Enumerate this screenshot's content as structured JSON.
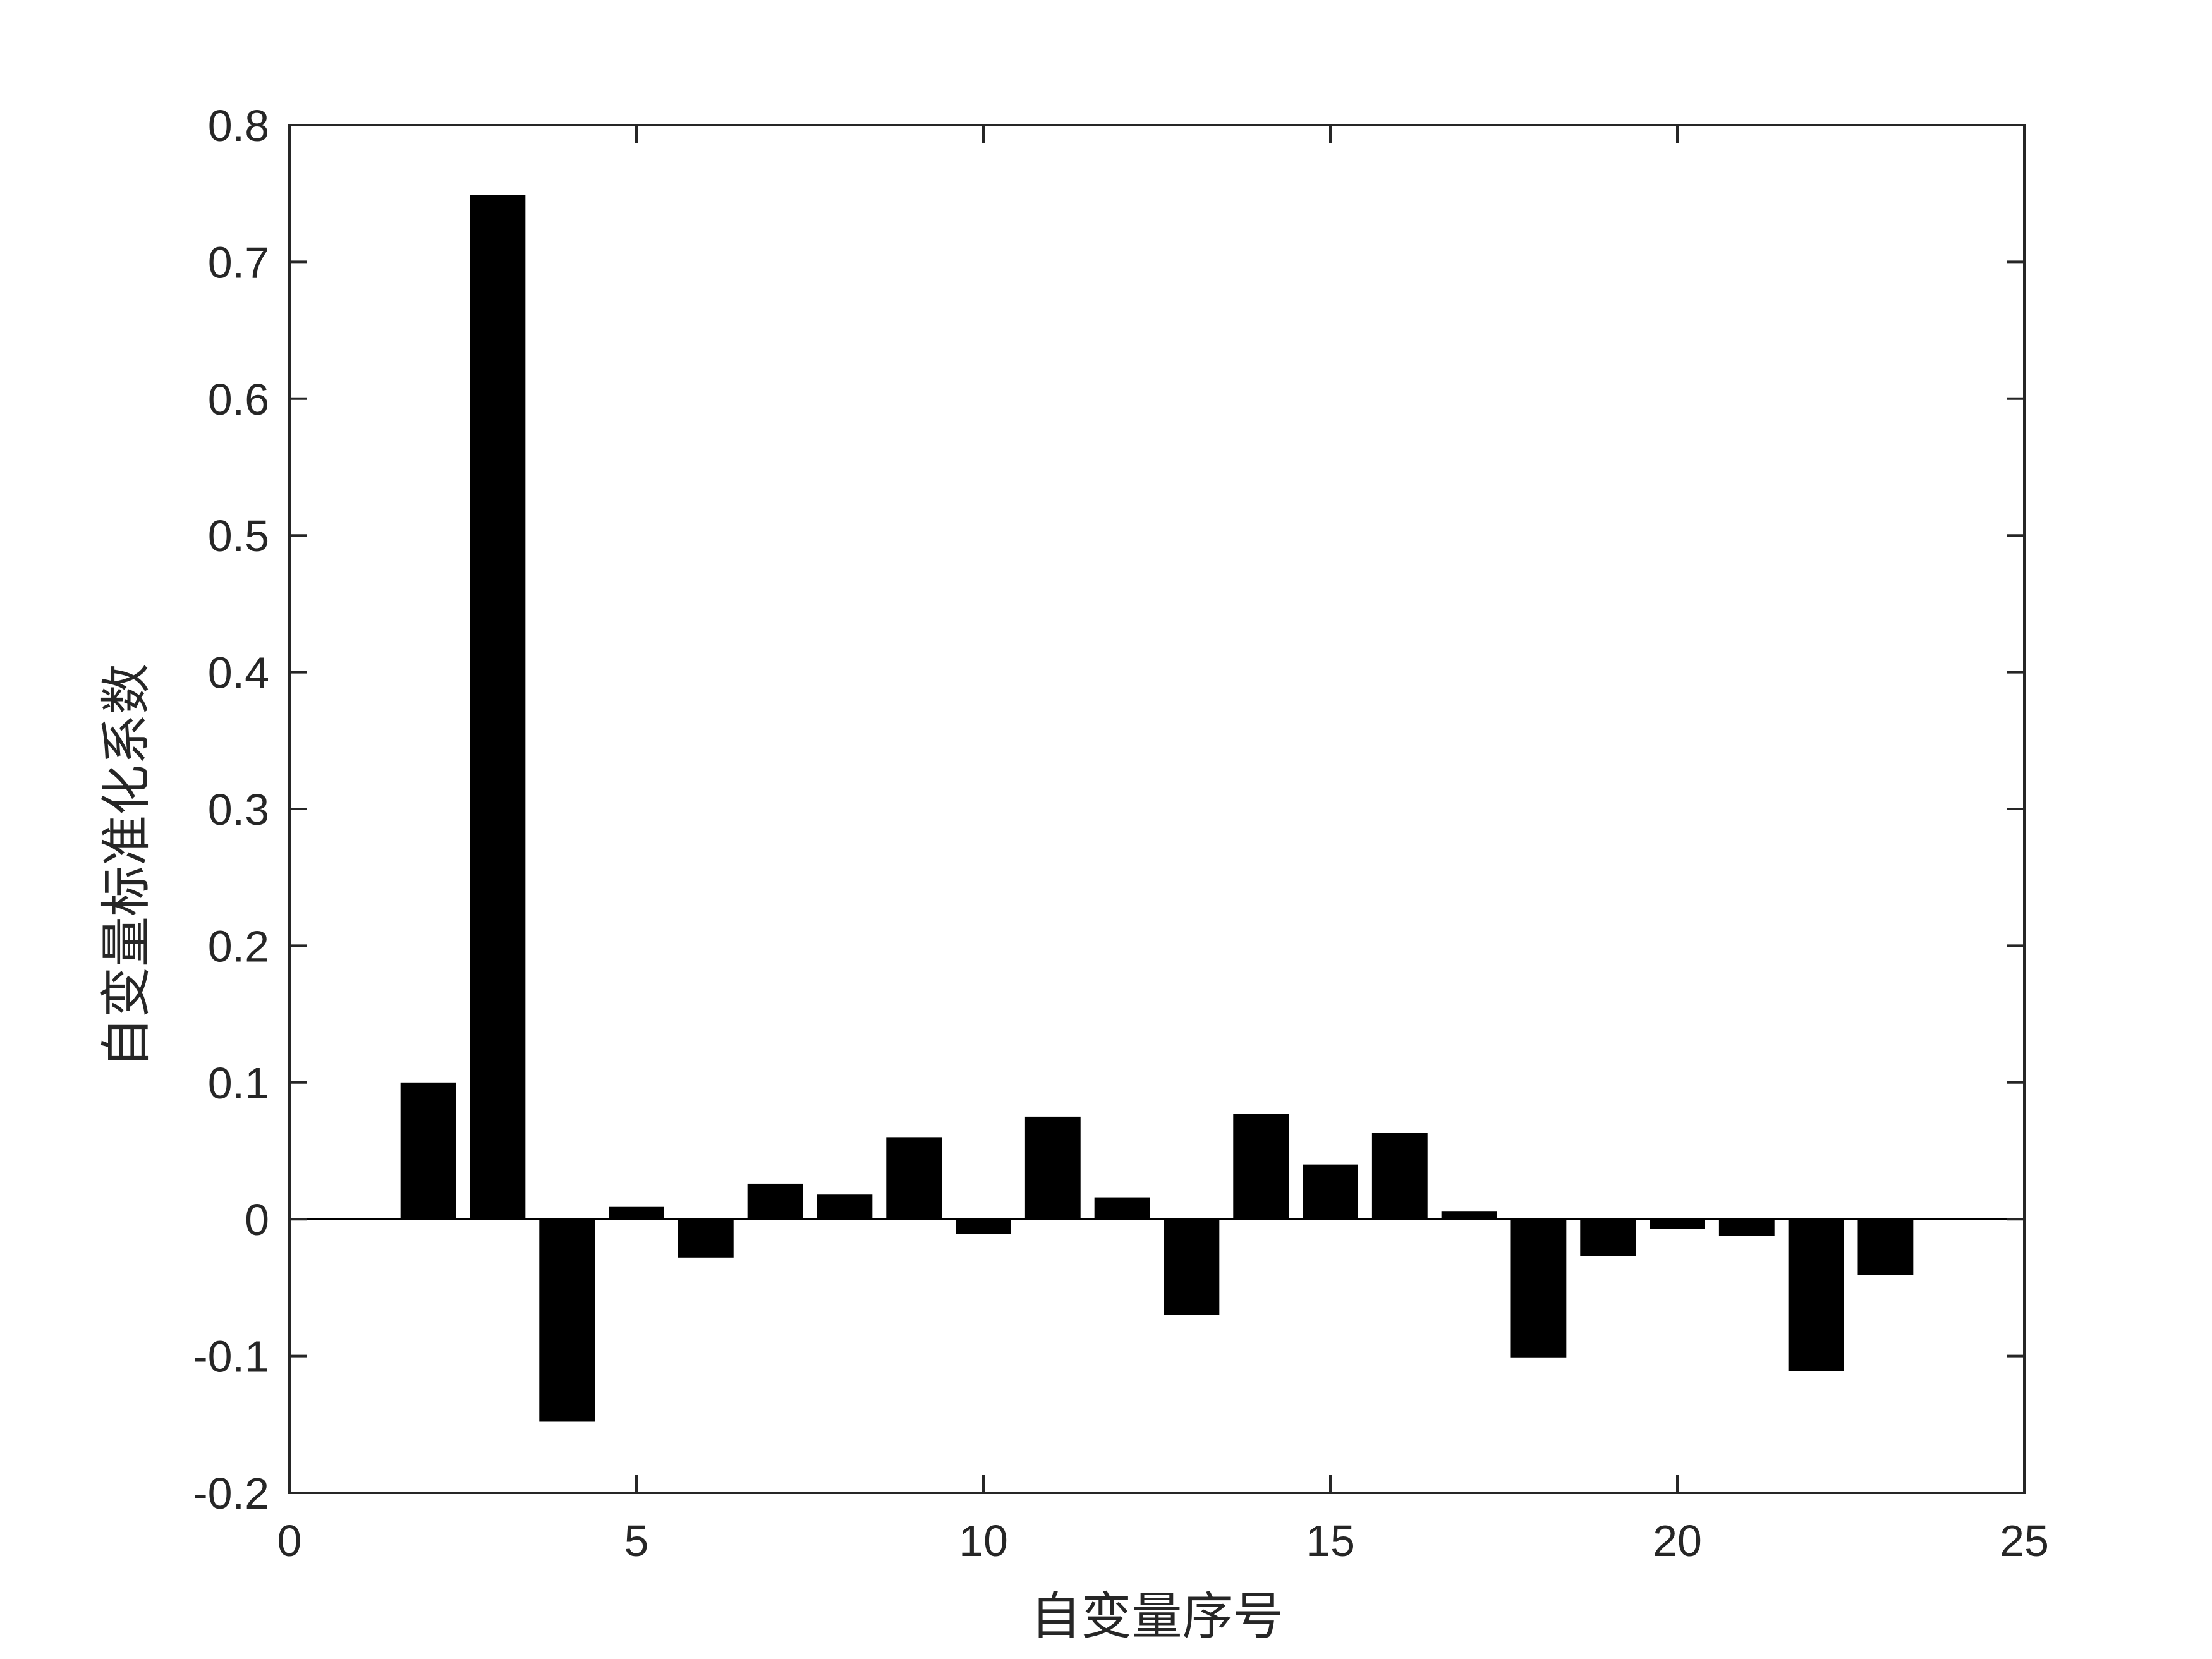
{
  "chart_data": {
    "type": "bar",
    "title": "",
    "xlabel": "自变量序号",
    "ylabel": "自变量标准化系数",
    "xlim": [
      0,
      25
    ],
    "ylim": [
      -0.2,
      0.8
    ],
    "xticks": [
      0,
      5,
      10,
      15,
      20,
      25
    ],
    "xtick_labels": [
      "0",
      "5",
      "10",
      "15",
      "20",
      "25"
    ],
    "yticks": [
      -0.2,
      -0.1,
      0,
      0.1,
      0.2,
      0.3,
      0.4,
      0.5,
      0.6,
      0.7,
      0.8
    ],
    "ytick_labels": [
      "-0.2",
      "-0.1",
      "0",
      "0.1",
      "0.2",
      "0.3",
      "0.4",
      "0.5",
      "0.6",
      "0.7",
      "0.8"
    ],
    "grid": false,
    "legend": false,
    "bar_color": "#000000",
    "axis_color": "#262626",
    "x": [
      1,
      2,
      3,
      4,
      5,
      6,
      7,
      8,
      9,
      10,
      11,
      12,
      13,
      14,
      15,
      16,
      17,
      18,
      19,
      20,
      21,
      22,
      23
    ],
    "values": [
      0.0,
      0.1,
      0.749,
      -0.148,
      0.009,
      -0.028,
      0.026,
      0.018,
      0.06,
      -0.011,
      0.075,
      0.016,
      -0.07,
      0.077,
      0.04,
      0.063,
      0.006,
      -0.101,
      -0.027,
      -0.007,
      -0.012,
      -0.111,
      -0.041
    ]
  }
}
